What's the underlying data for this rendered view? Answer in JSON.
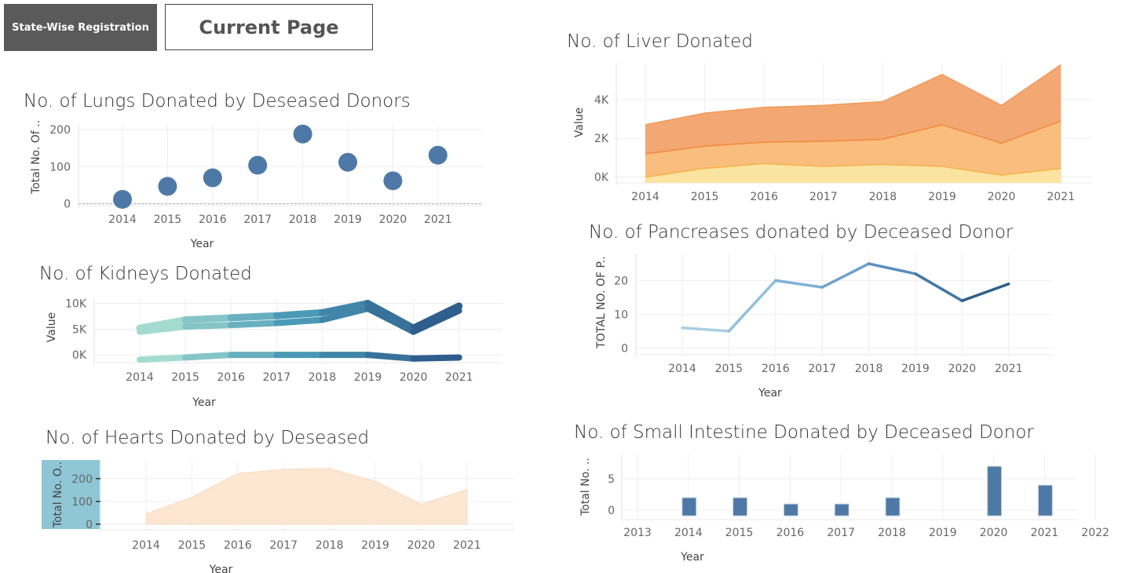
{
  "buttons": {
    "state_wise": "State-Wise Registration",
    "current_page": "Current Page"
  },
  "chart_data": [
    {
      "id": "lungs",
      "type": "scatter",
      "title": "No. of Lungs Donated by Deseased Donors",
      "xlabel": "Year",
      "ylabel": "Total No. Of ..",
      "x": [
        "2014",
        "2015",
        "2016",
        "2017",
        "2018",
        "2019",
        "2020",
        "2021"
      ],
      "values": [
        12,
        47,
        70,
        104,
        188,
        112,
        62,
        131
      ],
      "yticks": [
        0,
        100,
        200
      ],
      "ylim": [
        -5,
        215
      ],
      "color": "#4e79a7"
    },
    {
      "id": "kidneys",
      "type": "line",
      "title": "No. of Kidneys Donated",
      "xlabel": "Year",
      "ylabel": "Value",
      "x": [
        "2014",
        "2015",
        "2016",
        "2017",
        "2018",
        "2019",
        "2020",
        "2021"
      ],
      "yticks": [
        "0K",
        "5K",
        "10K"
      ],
      "yticks_values": [
        0,
        5000,
        10000
      ],
      "ylim": [
        -1500,
        11000
      ],
      "series": [
        {
          "values": [
            5200,
            6800,
            7200,
            7600,
            8200,
            10000,
            5200,
            9500
          ]
        },
        {
          "values": [
            4500,
            5500,
            5800,
            6200,
            6800,
            9000,
            4500,
            8600
          ]
        },
        {
          "values": [
            -900,
            -500,
            0,
            0,
            0,
            0,
            -700,
            -500
          ]
        }
      ],
      "colors": [
        "#a3dbd0",
        "#4a9ab7",
        "#2e5e8d"
      ]
    },
    {
      "id": "hearts",
      "type": "area",
      "title": "No. of Hearts Donated by Deseased",
      "xlabel": "Year",
      "ylabel": "Total No. O..",
      "x": [
        "2014",
        "2015",
        "2016",
        "2017",
        "2018",
        "2019",
        "2020",
        "2021"
      ],
      "values": [
        45,
        118,
        222,
        241,
        244,
        188,
        87,
        152
      ],
      "yticks": [
        0,
        100,
        200
      ],
      "ylim": [
        -25,
        275
      ],
      "color": "#fde6d2"
    },
    {
      "id": "liver",
      "type": "area",
      "title": "No. of Liver Donated",
      "xlabel": "",
      "ylabel": "Value",
      "x": [
        "2014",
        "2015",
        "2016",
        "2017",
        "2018",
        "2019",
        "2020",
        "2021"
      ],
      "yticks": [
        "0K",
        "2K",
        "4K"
      ],
      "yticks_values": [
        0,
        2000,
        4000
      ],
      "ylim": [
        -300,
        5900
      ],
      "series": [
        {
          "values": [
            0,
            450,
            700,
            550,
            650,
            550,
            100,
            450
          ]
        },
        {
          "values": [
            1200,
            1600,
            1800,
            1850,
            1950,
            2700,
            1750,
            2900
          ]
        },
        {
          "values": [
            2700,
            3300,
            3600,
            3700,
            3900,
            5300,
            3700,
            5800
          ]
        }
      ],
      "colors": [
        "#fbe3a1",
        "#f9bd7d",
        "#f3a772"
      ]
    },
    {
      "id": "pancreas",
      "type": "line",
      "title": "No. of Pancreases donated by Deceased Donor",
      "xlabel": "Year",
      "ylabel": "TOTAL NO. OF P..",
      "x": [
        "2014",
        "2015",
        "2016",
        "2017",
        "2018",
        "2019",
        "2020",
        "2021"
      ],
      "values": [
        6,
        5,
        20,
        18,
        25,
        22,
        14,
        19
      ],
      "yticks": [
        0,
        10,
        20
      ],
      "ylim": [
        -2,
        28
      ],
      "colors": [
        "#a9cde5",
        "#7eb1d7",
        "#5b8fbe",
        "#2f5f8a"
      ]
    },
    {
      "id": "intestine",
      "type": "bar",
      "title": "No. of Small Intestine Donated by Deceased Donor",
      "xlabel": "Year",
      "ylabel": "Total No. ..",
      "x": [
        "2013",
        "2014",
        "2015",
        "2016",
        "2017",
        "2018",
        "2019",
        "2020",
        "2021",
        "2022"
      ],
      "values": [
        null,
        2,
        2,
        1,
        1,
        2,
        null,
        7,
        4,
        null
      ],
      "yticks": [
        0,
        5
      ],
      "ylim": [
        -1.5,
        9
      ],
      "color": "#4e79a7"
    }
  ]
}
